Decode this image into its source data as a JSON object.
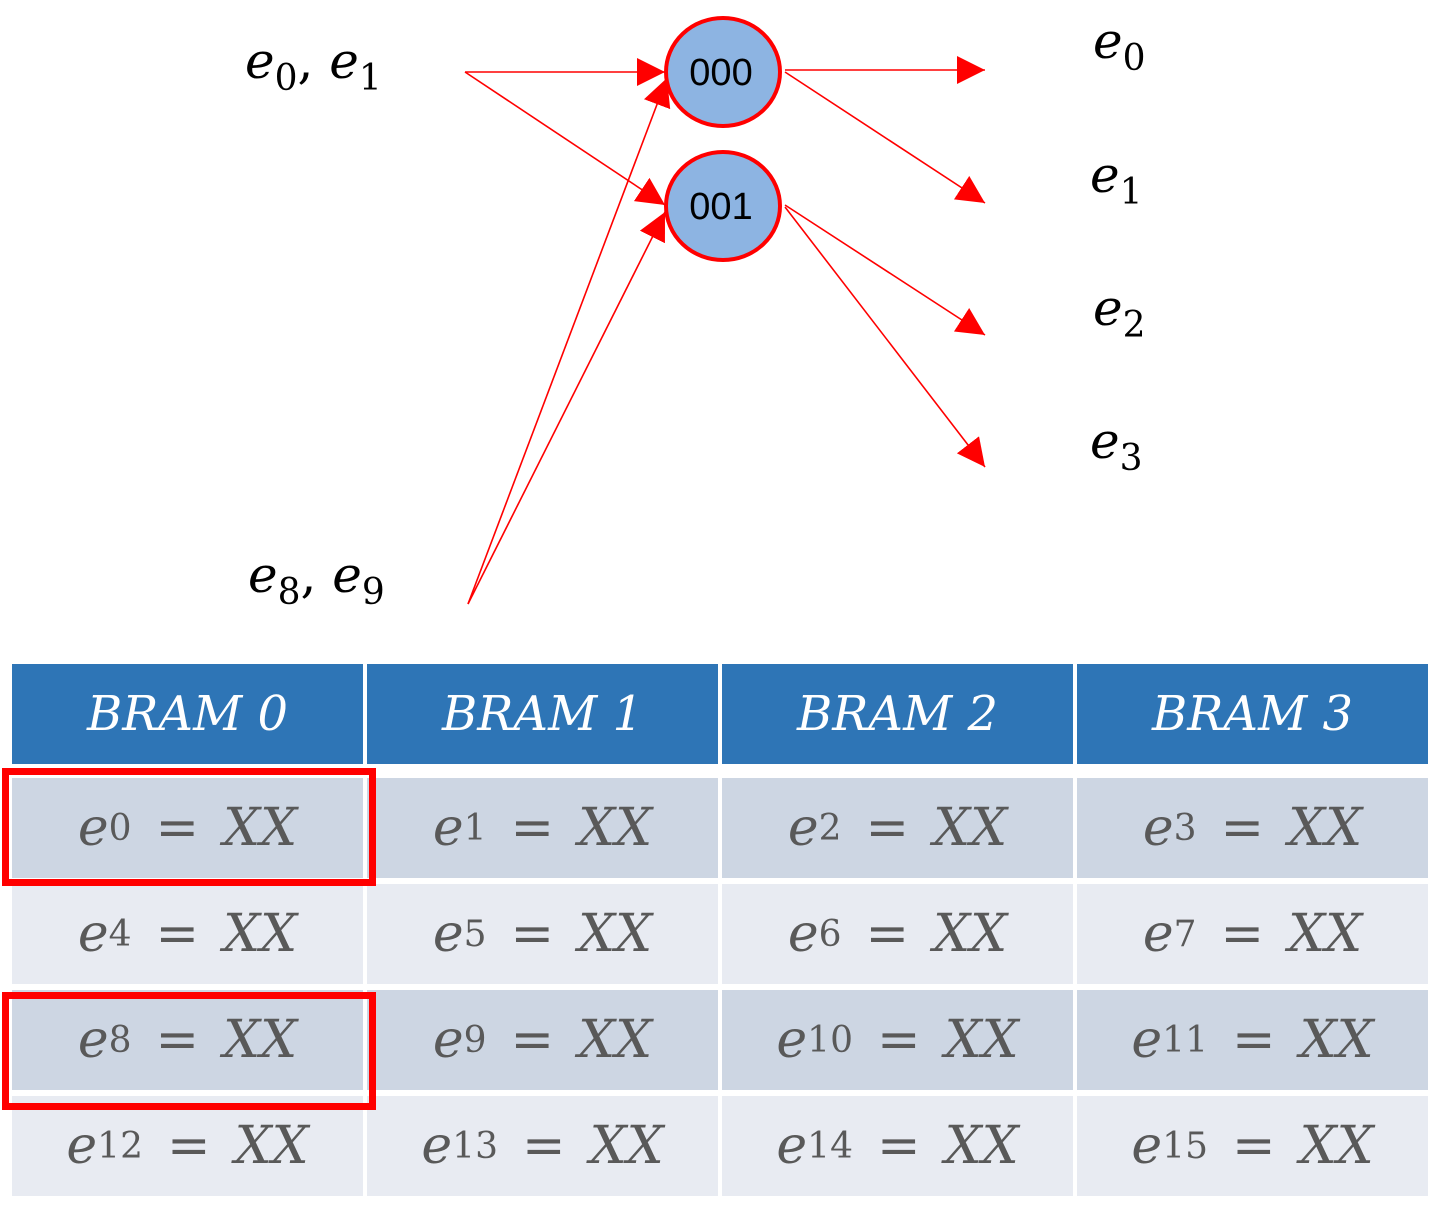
{
  "diagram": {
    "inputs": [
      {
        "var": "e",
        "sub": "0",
        "sep": ", ",
        "var2": "e",
        "sub2": "1"
      },
      {
        "var": "e",
        "sub": "8",
        "sep": ", ",
        "var2": "e",
        "sub2": "9"
      }
    ],
    "nodes": [
      {
        "label": "000"
      },
      {
        "label": "001"
      }
    ],
    "outputs": [
      {
        "var": "e",
        "sub": "0"
      },
      {
        "var": "e",
        "sub": "1"
      },
      {
        "var": "e",
        "sub": "2"
      },
      {
        "var": "e",
        "sub": "3"
      }
    ],
    "colors": {
      "edge": "#ff0000",
      "node_fill": "#8db4e2",
      "node_stroke": "#ff0000"
    }
  },
  "table": {
    "headers": [
      "BRAM 0",
      "BRAM 1",
      "BRAM 2",
      "BRAM 3"
    ],
    "rows": [
      [
        {
          "sub": "0",
          "val": "XX"
        },
        {
          "sub": "1",
          "val": "XX"
        },
        {
          "sub": "2",
          "val": "XX"
        },
        {
          "sub": "3",
          "val": "XX"
        }
      ],
      [
        {
          "sub": "4",
          "val": "XX"
        },
        {
          "sub": "5",
          "val": "XX"
        },
        {
          "sub": "6",
          "val": "XX"
        },
        {
          "sub": "7",
          "val": "XX"
        }
      ],
      [
        {
          "sub": "8",
          "val": "XX"
        },
        {
          "sub": "9",
          "val": "XX"
        },
        {
          "sub": "10",
          "val": "XX"
        },
        {
          "sub": "11",
          "val": "XX"
        }
      ],
      [
        {
          "sub": "12",
          "val": "XX"
        },
        {
          "sub": "13",
          "val": "XX"
        },
        {
          "sub": "14",
          "val": "XX"
        },
        {
          "sub": "15",
          "val": "XX"
        }
      ]
    ],
    "var": "e",
    "eq": "=",
    "highlighted_cells": [
      "e0",
      "e8"
    ],
    "colors": {
      "header": "#2e75b6",
      "row_dark": "#cdd6e3",
      "row_light": "#e8ebf2",
      "highlight": "#ff0000"
    }
  }
}
